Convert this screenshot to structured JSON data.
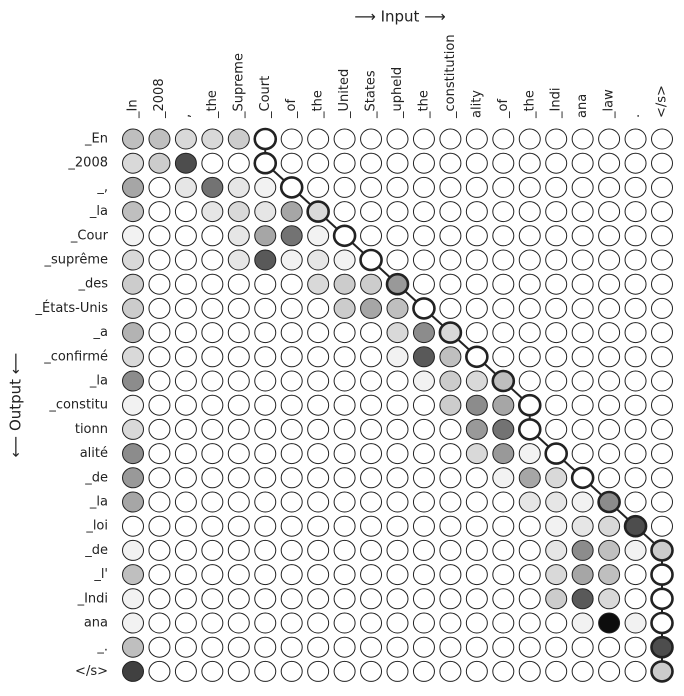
{
  "chart_data": {
    "type": "alignment-heatmap",
    "x_label": "⟶ Input ⟶",
    "y_label": "⟵ Output ⟵",
    "columns": [
      "_In",
      "_2008",
      ",",
      "_the",
      "_Supreme",
      "_Court",
      "_of",
      "_the",
      "_United",
      "_States",
      "_upheld",
      "_the",
      "_constitution",
      "ality",
      "_of",
      "_the",
      "_Indi",
      "ana",
      "_law",
      ".",
      "</s>"
    ],
    "rows": [
      "_En",
      "_2008",
      "_,",
      "_la",
      "_Cour",
      "_suprême",
      "_des",
      "_États-Unis",
      "_a",
      "_confirmé",
      "_la",
      "_constitu",
      "tionn",
      "alité",
      "_de",
      "_la",
      "_loi",
      "_de",
      "_l'",
      "_Indi",
      "ana",
      "_.",
      "</s>"
    ],
    "values": [
      [
        0.25,
        0.25,
        0.15,
        0.15,
        0.2,
        0,
        0,
        0,
        0,
        0,
        0,
        0,
        0,
        0,
        0,
        0,
        0,
        0,
        0,
        0,
        0
      ],
      [
        0.15,
        0.2,
        0.7,
        0,
        0,
        0,
        0,
        0,
        0,
        0,
        0,
        0,
        0,
        0,
        0,
        0,
        0,
        0,
        0,
        0,
        0
      ],
      [
        0.35,
        0,
        0.1,
        0.55,
        0.1,
        0.05,
        0,
        0,
        0,
        0,
        0,
        0,
        0,
        0,
        0,
        0,
        0,
        0,
        0,
        0,
        0
      ],
      [
        0.25,
        0,
        0,
        0.1,
        0.15,
        0.1,
        0.35,
        0.15,
        0,
        0,
        0,
        0,
        0,
        0,
        0,
        0,
        0,
        0,
        0,
        0,
        0
      ],
      [
        0.05,
        0,
        0,
        0,
        0.1,
        0.35,
        0.55,
        0.05,
        0,
        0,
        0,
        0,
        0,
        0,
        0,
        0,
        0,
        0,
        0,
        0,
        0
      ],
      [
        0.15,
        0,
        0,
        0,
        0.1,
        0.65,
        0.05,
        0.1,
        0.05,
        0,
        0,
        0,
        0,
        0,
        0,
        0,
        0,
        0,
        0,
        0,
        0
      ],
      [
        0.2,
        0,
        0,
        0,
        0,
        0,
        0,
        0.15,
        0.2,
        0.2,
        0.4,
        0,
        0,
        0,
        0,
        0,
        0,
        0,
        0,
        0,
        0
      ],
      [
        0.2,
        0,
        0,
        0,
        0,
        0,
        0,
        0,
        0.2,
        0.35,
        0.25,
        0,
        0,
        0,
        0,
        0,
        0,
        0,
        0,
        0,
        0
      ],
      [
        0.3,
        0,
        0,
        0,
        0,
        0,
        0,
        0,
        0,
        0,
        0.15,
        0.45,
        0.15,
        0,
        0,
        0,
        0,
        0,
        0,
        0,
        0
      ],
      [
        0.15,
        0,
        0,
        0,
        0,
        0,
        0,
        0,
        0,
        0,
        0.05,
        0.65,
        0.25,
        0,
        0,
        0,
        0,
        0,
        0,
        0,
        0
      ],
      [
        0.45,
        0,
        0,
        0,
        0,
        0,
        0,
        0,
        0,
        0,
        0,
        0.05,
        0.2,
        0.15,
        0.25,
        0,
        0,
        0,
        0,
        0,
        0
      ],
      [
        0.05,
        0,
        0,
        0,
        0,
        0,
        0,
        0,
        0,
        0,
        0,
        0,
        0.2,
        0.45,
        0.35,
        0,
        0,
        0,
        0,
        0,
        0
      ],
      [
        0.15,
        0,
        0,
        0,
        0,
        0,
        0,
        0,
        0,
        0,
        0,
        0,
        0,
        0.4,
        0.55,
        0,
        0,
        0,
        0,
        0,
        0
      ],
      [
        0.45,
        0,
        0,
        0,
        0,
        0,
        0,
        0,
        0,
        0,
        0,
        0,
        0,
        0.15,
        0.4,
        0.05,
        0,
        0,
        0,
        0,
        0
      ],
      [
        0.4,
        0,
        0,
        0,
        0,
        0,
        0,
        0,
        0,
        0,
        0,
        0,
        0,
        0,
        0.05,
        0.35,
        0.15,
        0,
        0,
        0,
        0
      ],
      [
        0.35,
        0,
        0,
        0,
        0,
        0,
        0,
        0,
        0,
        0,
        0,
        0,
        0,
        0,
        0,
        0.1,
        0.1,
        0.05,
        0.45,
        0,
        0
      ],
      [
        0,
        0,
        0,
        0,
        0,
        0,
        0,
        0,
        0,
        0,
        0,
        0,
        0,
        0,
        0,
        0,
        0.05,
        0.1,
        0.15,
        0.7,
        0
      ],
      [
        0.05,
        0,
        0,
        0,
        0,
        0,
        0,
        0,
        0,
        0,
        0,
        0,
        0,
        0,
        0,
        0,
        0.1,
        0.45,
        0.25,
        0.05,
        0.2
      ],
      [
        0.25,
        0,
        0,
        0,
        0,
        0,
        0,
        0,
        0,
        0,
        0,
        0,
        0,
        0,
        0,
        0,
        0.15,
        0.35,
        0.25,
        0,
        0
      ],
      [
        0.05,
        0,
        0,
        0,
        0,
        0,
        0,
        0,
        0,
        0,
        0,
        0,
        0,
        0,
        0,
        0,
        0.2,
        0.65,
        0.15,
        0,
        0
      ],
      [
        0.05,
        0,
        0,
        0,
        0,
        0,
        0,
        0,
        0,
        0,
        0,
        0,
        0,
        0,
        0,
        0,
        0,
        0.05,
        0.95,
        0.05,
        0
      ],
      [
        0.25,
        0,
        0,
        0,
        0,
        0,
        0,
        0,
        0,
        0,
        0,
        0,
        0,
        0,
        0,
        0,
        0,
        0,
        0,
        0,
        0.7
      ],
      [
        0.75,
        0,
        0,
        0,
        0,
        0,
        0,
        0,
        0,
        0,
        0,
        0,
        0,
        0,
        0,
        0,
        0,
        0,
        0,
        0,
        0.2
      ]
    ],
    "alignment": [
      5,
      5,
      6,
      7,
      8,
      9,
      10,
      11,
      12,
      13,
      14,
      15,
      15,
      16,
      17,
      18,
      19,
      20,
      20,
      20,
      20,
      20,
      20
    ]
  }
}
